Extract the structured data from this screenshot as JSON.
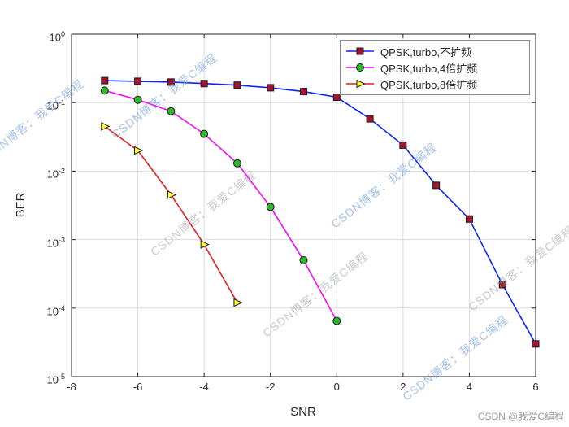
{
  "credit": "CSDN @我爱C编程",
  "watermark": {
    "text": "CSDN博客：我爱C编程",
    "colors": {
      "blue": "#5b8fd4",
      "gray": "#9aa0a6"
    }
  },
  "chart_data": {
    "type": "line",
    "title": "",
    "xlabel": "SNR",
    "ylabel": "BER",
    "xlim": [
      -8,
      6
    ],
    "y_log_lim": [
      -5,
      0
    ],
    "grid": true,
    "legend_position": "top-right",
    "x_ticks": [
      "-8",
      "-6",
      "-4",
      "-2",
      "0",
      "2",
      "4",
      "6"
    ],
    "y_ticks": [
      {
        "base": "10",
        "exp": "0"
      },
      {
        "base": "10",
        "exp": "-1"
      },
      {
        "base": "10",
        "exp": "-2"
      },
      {
        "base": "10",
        "exp": "-3"
      },
      {
        "base": "10",
        "exp": "-4"
      },
      {
        "base": "10",
        "exp": "-5"
      }
    ],
    "series": [
      {
        "name": "QPSK,turbo,不扩频",
        "line_color": "#0b24fb",
        "marker": "square",
        "marker_color": "#a2142f",
        "x": [
          -7,
          -6,
          -5,
          -4,
          -3,
          -2,
          -1,
          0,
          1,
          2,
          3,
          4,
          5,
          6
        ],
        "y": [
          0.21,
          0.205,
          0.2,
          0.19,
          0.18,
          0.165,
          0.145,
          0.12,
          0.058,
          0.024,
          0.0062,
          0.002,
          0.00022,
          3e-05
        ]
      },
      {
        "name": "QPSK,turbo,4倍扩频",
        "line_color": "#f608f6",
        "marker": "circle",
        "marker_color": "#2eb82e",
        "x": [
          -7,
          -6,
          -5,
          -4,
          -3,
          -2,
          -1,
          0
        ],
        "y": [
          0.15,
          0.11,
          0.075,
          0.035,
          0.013,
          0.003,
          0.0005,
          6.5e-05
        ]
      },
      {
        "name": "QPSK,turbo,8倍扩频",
        "line_color": "#e02020",
        "marker": "triangle-right",
        "marker_color": "#ffff33",
        "x": [
          -7,
          -6,
          -5,
          -4,
          -3
        ],
        "y": [
          0.045,
          0.02,
          0.0045,
          0.00085,
          0.00012
        ]
      }
    ]
  }
}
